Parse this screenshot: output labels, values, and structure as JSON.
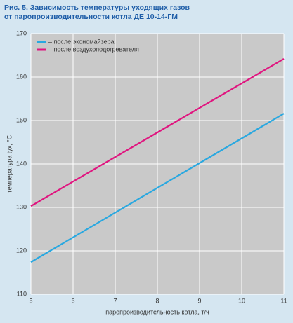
{
  "chart_data": {
    "type": "line",
    "title": "Рис. 5. Зависимость температуры уходящих газов\nот паропроизводительности котла ДЕ 10-14-ГМ",
    "x_label": "паропроизводительность котла, т/ч",
    "y_label": "температура tух, °С",
    "x": [
      5,
      11
    ],
    "series": [
      {
        "name": "– после экономайзера",
        "color": "#29a8e0",
        "values": [
          117.4,
          151.6
        ]
      },
      {
        "name": "– после воздухоподогревателя",
        "color": "#e0157f",
        "values": [
          130.3,
          164.2
        ]
      }
    ],
    "xlim": [
      5,
      11
    ],
    "xticks": [
      5,
      6,
      7,
      8,
      9,
      10,
      11
    ],
    "ylim": [
      110,
      170
    ],
    "yticks": [
      110,
      120,
      130,
      140,
      150,
      160,
      170
    ],
    "grid": true,
    "legend": "upper left"
  }
}
